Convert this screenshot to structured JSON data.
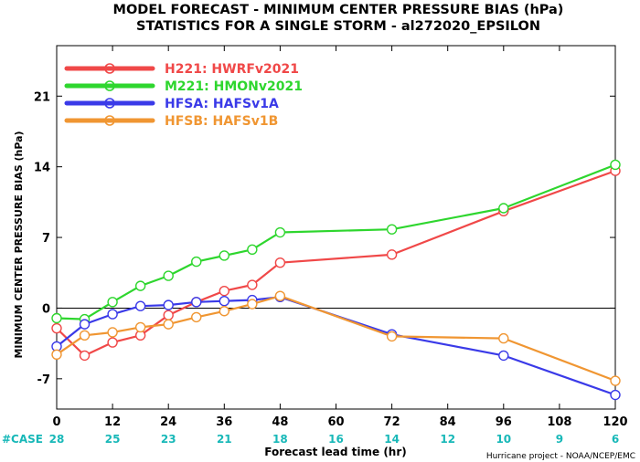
{
  "chart_data": {
    "type": "line",
    "title": "MODEL FORECAST - MINIMUM CENTER PRESSURE BIAS (hPa)",
    "subtitle": "STATISTICS FOR A SINGLE STORM - al272020_EPSILON",
    "xlabel": "Forecast lead time (hr)",
    "ylabel": "MINIMUM CENTER PRESSURE BIAS (hPa)",
    "xlim": [
      0,
      120
    ],
    "ylim": [
      -10,
      26
    ],
    "x_ticks": [
      0,
      12,
      24,
      36,
      48,
      60,
      72,
      84,
      96,
      108,
      120
    ],
    "y_ticks": [
      -7,
      0,
      7,
      14,
      21
    ],
    "zero_line": true,
    "grid": false,
    "legend_position": "top-left",
    "case_label": "#CASE",
    "case_counts": [
      28,
      25,
      23,
      21,
      18,
      16,
      14,
      12,
      10,
      9,
      6
    ],
    "credit": "Hurricane project - NOAA/NCEP/EMC",
    "series": [
      {
        "code": "H221",
        "name": "HWRFv2021",
        "color": "#f04848",
        "x": [
          0,
          6,
          12,
          18,
          24,
          30,
          36,
          42,
          48,
          72,
          96,
          120
        ],
        "y": [
          -2.0,
          -4.7,
          -3.4,
          -2.7,
          -0.7,
          0.6,
          1.7,
          2.3,
          4.5,
          5.3,
          9.6,
          13.6
        ]
      },
      {
        "code": "M221",
        "name": "HMONv2021",
        "color": "#2ed62e",
        "x": [
          0,
          6,
          12,
          18,
          24,
          30,
          36,
          42,
          48,
          72,
          96,
          120
        ],
        "y": [
          -1.0,
          -1.1,
          0.6,
          2.2,
          3.2,
          4.6,
          5.2,
          5.8,
          7.5,
          7.8,
          9.9,
          14.2
        ]
      },
      {
        "code": "HFSA",
        "name": "HAFSv1A",
        "color": "#3a3ae8",
        "x": [
          0,
          6,
          12,
          18,
          24,
          30,
          36,
          42,
          48,
          72,
          96,
          120
        ],
        "y": [
          -3.8,
          -1.6,
          -0.6,
          0.2,
          0.3,
          0.6,
          0.7,
          0.8,
          1.1,
          -2.6,
          -4.7,
          -8.6
        ]
      },
      {
        "code": "HFSB",
        "name": "HAFSv1B",
        "color": "#f09632",
        "x": [
          0,
          6,
          12,
          18,
          24,
          30,
          36,
          42,
          48,
          72,
          96,
          120
        ],
        "y": [
          -4.6,
          -2.7,
          -2.4,
          -1.9,
          -1.6,
          -0.9,
          -0.3,
          0.4,
          1.2,
          -2.8,
          -3.0,
          -7.2
        ]
      }
    ]
  }
}
